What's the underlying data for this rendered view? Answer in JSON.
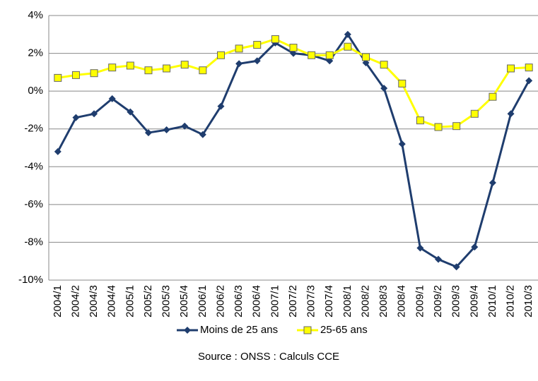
{
  "chart_data": {
    "type": "line",
    "source": "Source : ONSS : Calculs CCE",
    "categories": [
      "2004/1",
      "2004/2",
      "2004/3",
      "2004/4",
      "2005/1",
      "2005/2",
      "2005/3",
      "2005/4",
      "2006/1",
      "2006/2",
      "2006/3",
      "2006/4",
      "2007/1",
      "2007/2",
      "2007/3",
      "2007/4",
      "2008/1",
      "2008/2",
      "2008/3",
      "2008/4",
      "2009/1",
      "2009/2",
      "2009/3",
      "2009/4",
      "2010/1",
      "2010/2",
      "2010/3"
    ],
    "series": [
      {
        "name": "Moins de 25 ans",
        "color": "#1f3d6e",
        "marker": "diamond",
        "values": [
          -3.2,
          -1.4,
          -1.2,
          -0.4,
          -1.1,
          -2.2,
          -2.05,
          -1.85,
          -2.3,
          -0.8,
          1.45,
          1.6,
          2.55,
          2.0,
          1.9,
          1.6,
          3.0,
          1.5,
          0.15,
          -2.8,
          -8.3,
          -8.9,
          -9.3,
          -8.25,
          -4.85,
          -1.2,
          0.55
        ]
      },
      {
        "name": "25-65 ans",
        "color": "#ffff00",
        "marker": "square",
        "values": [
          0.7,
          0.85,
          0.95,
          1.25,
          1.35,
          1.1,
          1.2,
          1.4,
          1.1,
          1.9,
          2.25,
          2.45,
          2.75,
          2.3,
          1.9,
          1.9,
          2.35,
          1.8,
          1.4,
          0.4,
          -1.55,
          -1.9,
          -1.85,
          -1.2,
          -0.3,
          1.2,
          1.25
        ]
      }
    ],
    "ylim": [
      -10,
      4
    ],
    "yticks": [
      {
        "value": -10,
        "label": "-10%"
      },
      {
        "value": -8,
        "label": "-8%"
      },
      {
        "value": -6,
        "label": "-6%"
      },
      {
        "value": -4,
        "label": "-4%"
      },
      {
        "value": -2,
        "label": "-2%"
      },
      {
        "value": 0,
        "label": "0%"
      },
      {
        "value": 2,
        "label": "2%"
      },
      {
        "value": 4,
        "label": "4%"
      }
    ],
    "grid": true,
    "legend": "bottom"
  }
}
